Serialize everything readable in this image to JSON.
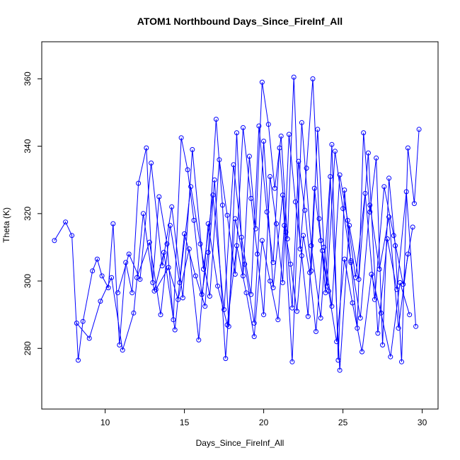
{
  "chart_data": {
    "type": "scatter",
    "style": "points-connected-by-lines",
    "title": "ATOM1 Northbound Days_Since_FireInf_All",
    "xlabel": "Days_Since_FireInf_All",
    "ylabel": "Theta (K)",
    "xlim": [
      6,
      31
    ],
    "ylim": [
      262,
      371
    ],
    "xticks": [
      10,
      15,
      20,
      25,
      30
    ],
    "yticks": [
      280,
      300,
      320,
      340,
      360
    ],
    "grid": false,
    "legend": "none",
    "color": "#0000ff",
    "series": [
      {
        "x": [
          6.8,
          7.5,
          7.9,
          8.3,
          8.6,
          9.2,
          9.5,
          9.8,
          10.2,
          10.5,
          10.9,
          11.3,
          11.7,
          12.1,
          12.6,
          13.0,
          13.4,
          13.9,
          14.3,
          14.8,
          15.2,
          15.6,
          16.1,
          16.5,
          17.0,
          17.4,
          17.8,
          18.3,
          18.7,
          19.1,
          19.5,
          19.9,
          20.3,
          20.7,
          21.1,
          21.5,
          21.9,
          22.3,
          22.7,
          23.1,
          23.5,
          23.9,
          24.3,
          24.7,
          25.1,
          25.5,
          25.9,
          26.3,
          26.7,
          27.1,
          27.5,
          27.9,
          28.3,
          28.7,
          29.1,
          29.5,
          29.8
        ],
        "y": [
          312.0,
          317.5,
          313.5,
          276.5,
          288.0,
          303.0,
          306.5,
          301.5,
          298.0,
          317.0,
          281.0,
          305.5,
          296.5,
          329.0,
          339.5,
          299.5,
          325.0,
          311.0,
          288.5,
          342.5,
          333.0,
          318.0,
          296.0,
          308.5,
          348.0,
          322.5,
          286.5,
          344.0,
          301.5,
          337.0,
          315.5,
          359.0,
          346.5,
          327.5,
          343.0,
          312.5,
          360.5,
          309.5,
          333.5,
          360.0,
          318.5,
          296.5,
          340.5,
          276.5,
          327.0,
          305.5,
          286.0,
          344.0,
          320.5,
          336.5,
          281.0,
          330.5,
          310.5,
          276.0,
          339.5,
          323.0,
          345.0
        ]
      },
      {
        "x": [
          8.2,
          9.0,
          9.7,
          10.4,
          11.1,
          11.8,
          12.4,
          13.1,
          13.7,
          14.4,
          15.0,
          15.7,
          16.3,
          16.9,
          17.6,
          18.2,
          18.8,
          19.4,
          20.0,
          20.6,
          21.2,
          21.8,
          22.4,
          23.0,
          23.6,
          24.2,
          24.8,
          25.4,
          26.0,
          26.6,
          27.2,
          27.8,
          28.4,
          29.0,
          29.6
        ],
        "y": [
          287.5,
          283.0,
          294.0,
          301.0,
          279.5,
          290.5,
          320.0,
          297.0,
          308.5,
          285.5,
          314.0,
          301.5,
          292.5,
          330.0,
          277.0,
          318.5,
          305.0,
          287.5,
          341.5,
          298.0,
          325.5,
          276.0,
          347.0,
          310.5,
          289.0,
          331.0,
          273.5,
          316.5,
          300.5,
          338.0,
          284.5,
          312.5,
          297.5,
          326.5,
          286.5
        ]
      },
      {
        "x": [
          10.8,
          11.5,
          12.2,
          12.9,
          13.6,
          14.2,
          14.9,
          15.5,
          16.2,
          16.8,
          17.5,
          18.1,
          18.6,
          19.2,
          19.7,
          20.2,
          20.6,
          21.0,
          21.4,
          21.8,
          22.2,
          22.6,
          23.0,
          23.4,
          23.8,
          24.3,
          24.8,
          25.3,
          25.8,
          26.4,
          27.0,
          27.6,
          28.2,
          28.8,
          29.4
        ],
        "y": [
          296.5,
          308.0,
          300.5,
          335.0,
          304.5,
          322.0,
          295.0,
          339.0,
          303.5,
          325.5,
          291.5,
          334.5,
          313.0,
          296.0,
          346.0,
          320.5,
          305.5,
          339.5,
          314.5,
          292.0,
          335.5,
          321.0,
          303.0,
          345.0,
          310.0,
          292.5,
          331.5,
          318.0,
          301.0,
          326.0,
          294.5,
          328.0,
          313.5,
          299.0,
          316.0
        ]
      },
      {
        "x": [
          12.0,
          12.8,
          13.5,
          14.1,
          14.7,
          15.4,
          16.0,
          16.6,
          17.2,
          17.7,
          18.2,
          18.7,
          19.2,
          19.6,
          20.0,
          20.4,
          20.8,
          21.2,
          21.6,
          22.0,
          22.4,
          22.8,
          23.2,
          23.6,
          24.0,
          24.5,
          25.0,
          25.5,
          26.1,
          26.7,
          27.3,
          27.9,
          28.5,
          29.1
        ],
        "y": [
          301.0,
          311.5,
          290.0,
          316.5,
          299.5,
          328.0,
          311.0,
          295.5,
          336.0,
          319.5,
          302.0,
          345.5,
          324.5,
          308.0,
          290.0,
          331.0,
          317.0,
          299.5,
          343.5,
          323.5,
          307.5,
          289.5,
          327.5,
          312.0,
          298.5,
          338.5,
          321.5,
          306.0,
          289.0,
          322.5,
          303.5,
          319.0,
          286.0,
          308.0
        ]
      },
      {
        "x": [
          13.2,
          14.0,
          14.6,
          15.3,
          15.9,
          16.5,
          17.1,
          17.7,
          18.3,
          18.9,
          19.4,
          19.9,
          20.4,
          20.9,
          21.3,
          21.7,
          22.1,
          22.5,
          22.9,
          23.3,
          23.7,
          24.1,
          24.6,
          25.1,
          25.6,
          26.2,
          26.8,
          27.4,
          28.0,
          28.6,
          29.2
        ],
        "y": [
          297.5,
          304.0,
          294.5,
          309.5,
          282.5,
          317.0,
          298.5,
          287.0,
          310.5,
          296.5,
          283.5,
          312.0,
          300.0,
          288.5,
          316.5,
          305.0,
          291.0,
          313.5,
          302.5,
          285.0,
          309.0,
          297.0,
          282.0,
          306.5,
          293.5,
          279.0,
          302.0,
          290.5,
          277.5,
          299.5,
          290.0
        ]
      }
    ]
  }
}
